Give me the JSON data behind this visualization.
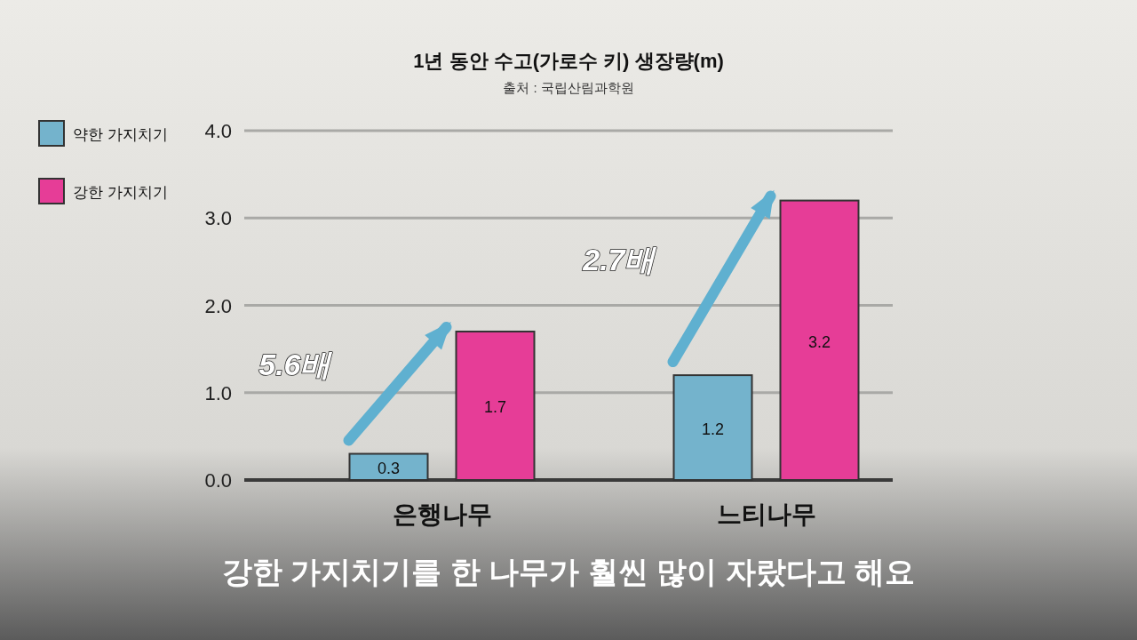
{
  "chart_data": {
    "type": "bar",
    "title": "1년 동안 수고(가로수 키) 생장량(m)",
    "subtitle": "출처 : 국립산림과학원",
    "categories": [
      "은행나무",
      "느티나무"
    ],
    "series": [
      {
        "name": "약한 가지치기",
        "color": "#74b3cc",
        "values": [
          0.3,
          1.2
        ]
      },
      {
        "name": "강한 가지치기",
        "color": "#e63d97",
        "values": [
          1.7,
          3.2
        ]
      }
    ],
    "ylim": [
      0,
      4
    ],
    "yticks": [
      {
        "value": 0,
        "label": "0.0"
      },
      {
        "value": 1,
        "label": "1.0"
      },
      {
        "value": 2,
        "label": "2.0"
      },
      {
        "value": 3,
        "label": "3.0"
      },
      {
        "value": 4,
        "label": "4.0"
      }
    ],
    "grid": "y",
    "legend": "top left",
    "data_labels": true,
    "annotations": [
      "5.6배",
      "2.7배",
      "강한 가지치기를 한 나무가 훨씬 많이 자랐다고 해요"
    ]
  }
}
